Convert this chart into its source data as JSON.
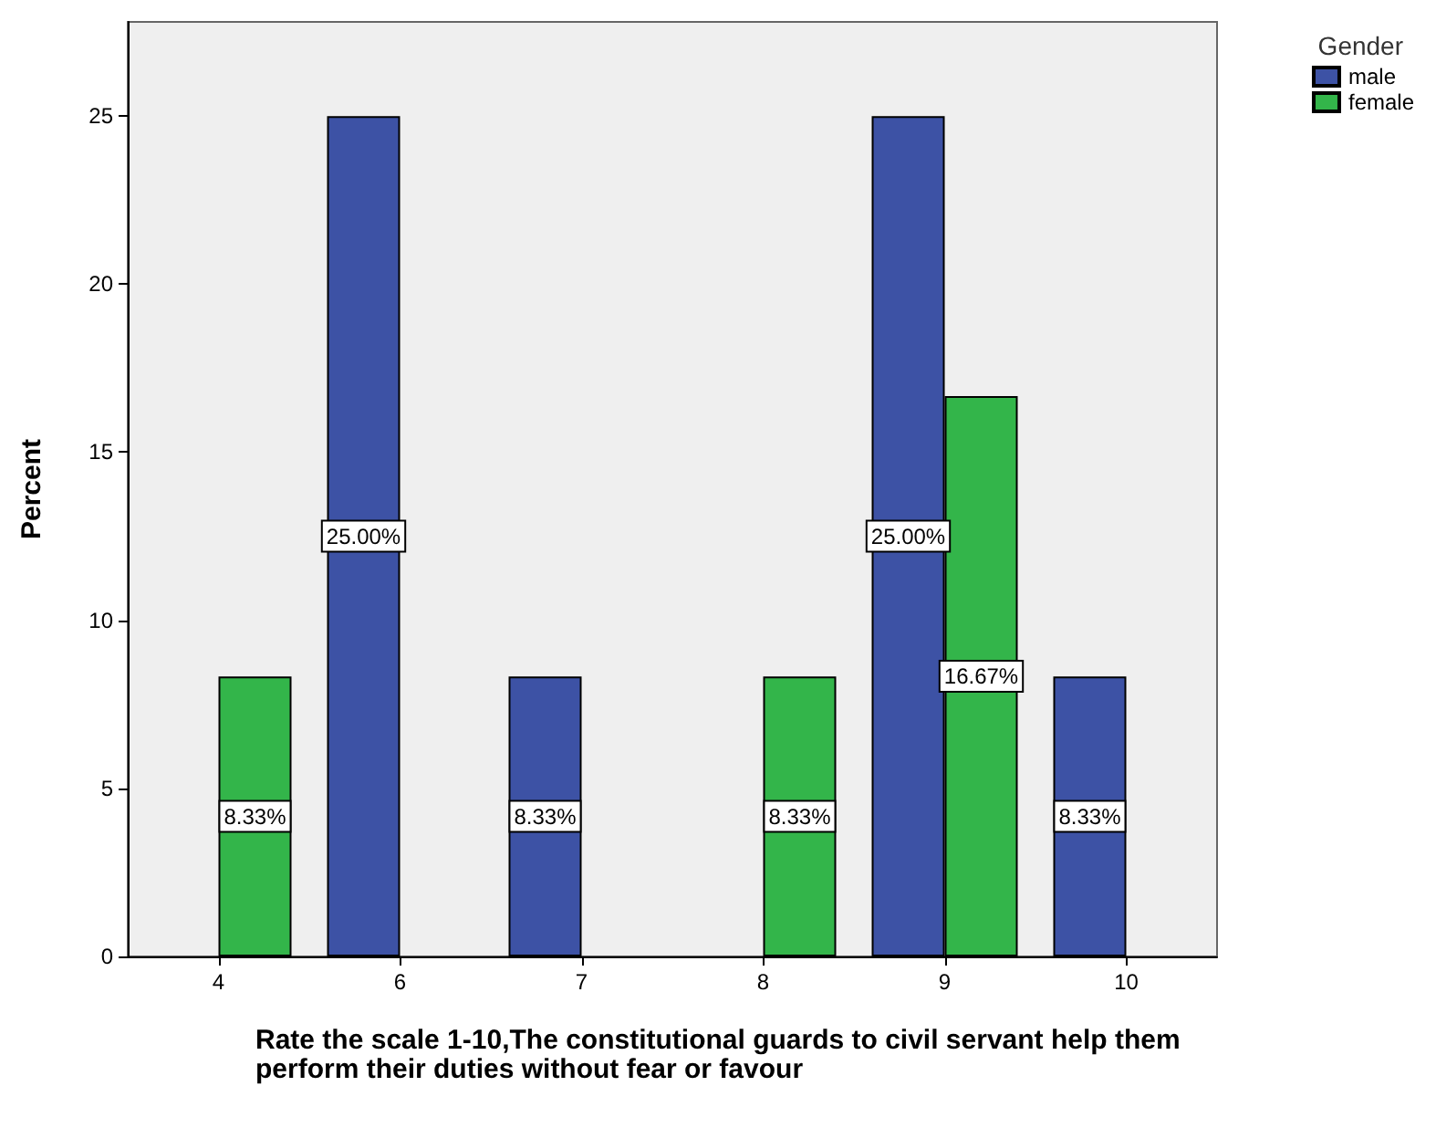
{
  "chart_data": {
    "type": "bar",
    "xlabel": "Rate the scale 1-10,The constitutional guards to civil servant help them perform their duties without fear or favour",
    "ylabel": "Percent",
    "legend_title": "Gender",
    "legend": "top right",
    "categories": [
      "4",
      "6",
      "7",
      "8",
      "9",
      "10"
    ],
    "series": [
      {
        "name": "male",
        "color": "#3d52a5",
        "values": [
          null,
          25,
          8.33,
          null,
          25,
          8.33
        ],
        "value_labels": [
          null,
          "25.00%",
          "8.33%",
          null,
          "25.00%",
          "8.33%"
        ]
      },
      {
        "name": "female",
        "color": "#33b54a",
        "values": [
          8.33,
          null,
          null,
          8.33,
          16.67,
          null
        ],
        "value_labels": [
          "8.33%",
          null,
          null,
          "8.33%",
          "16.67%",
          null
        ]
      }
    ],
    "ylim": [
      0,
      27.8
    ],
    "yticks": [
      0,
      5,
      10,
      15,
      20,
      25
    ],
    "grid": false
  }
}
